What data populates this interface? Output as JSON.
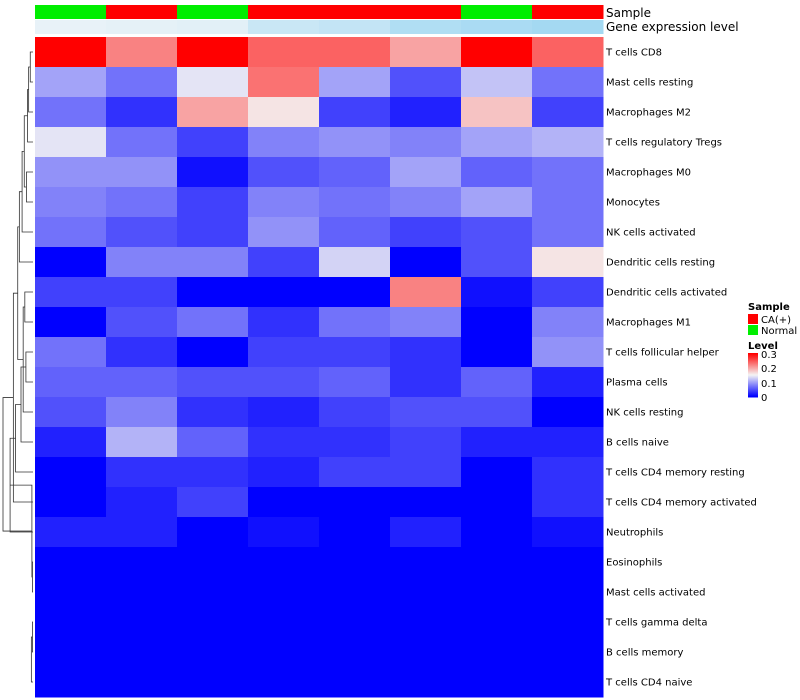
{
  "chart_data": {
    "type": "heatmap",
    "title": "",
    "column_count": 8,
    "annotations": [
      {
        "name": "Sample",
        "values": [
          "Normal",
          "CA(+)",
          "Normal",
          "CA(+)",
          "CA(+)",
          "CA(+)",
          "Normal",
          "CA(+)"
        ],
        "colors": {
          "CA(+)": "#ff0000",
          "Normal": "#00ee00"
        }
      },
      {
        "name": "Gene expression level",
        "values": [
          0.05,
          0.07,
          0.1,
          0.3,
          0.35,
          0.5,
          0.55,
          0.6
        ],
        "colors": {
          "low": "#eef4f8",
          "high": "#72c7ee"
        }
      }
    ],
    "rows": [
      "T cells CD8",
      "Mast cells resting",
      "Macrophages M2",
      "T cells regulatory  Tregs",
      "Macrophages M0",
      "Monocytes",
      "NK cells activated",
      "Dendritic cells resting",
      "Dendritic cells activated",
      "Macrophages M1",
      "T cells follicular helper",
      "Plasma cells",
      "NK cells resting",
      "B cells naive",
      "T cells CD4 memory resting",
      "T cells CD4 memory activated",
      "Neutrophils",
      "Eosinophils",
      "Mast cells activated",
      "T cells gamma delta",
      "B cells memory",
      "T cells CD4 naive"
    ],
    "values": [
      [
        0.3,
        0.22,
        0.3,
        0.24,
        0.24,
        0.2,
        0.3,
        0.24
      ],
      [
        0.1,
        0.07,
        0.14,
        0.23,
        0.1,
        0.05,
        0.12,
        0.07
      ],
      [
        0.07,
        0.03,
        0.2,
        0.16,
        0.04,
        0.02,
        0.18,
        0.04
      ],
      [
        0.14,
        0.07,
        0.04,
        0.08,
        0.09,
        0.08,
        0.1,
        0.11
      ],
      [
        0.09,
        0.09,
        0.01,
        0.05,
        0.06,
        0.1,
        0.06,
        0.07
      ],
      [
        0.08,
        0.07,
        0.04,
        0.08,
        0.07,
        0.08,
        0.1,
        0.07
      ],
      [
        0.07,
        0.05,
        0.04,
        0.09,
        0.06,
        0.04,
        0.05,
        0.07
      ],
      [
        0.0,
        0.08,
        0.08,
        0.04,
        0.13,
        0.0,
        0.05,
        0.16
      ],
      [
        0.04,
        0.04,
        0.0,
        0.0,
        0.0,
        0.22,
        0.01,
        0.04
      ],
      [
        0.0,
        0.05,
        0.07,
        0.03,
        0.07,
        0.08,
        0.0,
        0.08
      ],
      [
        0.07,
        0.03,
        0.0,
        0.04,
        0.04,
        0.03,
        0.0,
        0.09
      ],
      [
        0.06,
        0.06,
        0.05,
        0.05,
        0.06,
        0.03,
        0.06,
        0.02
      ],
      [
        0.05,
        0.08,
        0.03,
        0.02,
        0.04,
        0.05,
        0.05,
        0.0
      ],
      [
        0.02,
        0.11,
        0.06,
        0.03,
        0.03,
        0.04,
        0.02,
        0.02
      ],
      [
        0.0,
        0.03,
        0.03,
        0.02,
        0.04,
        0.04,
        0.0,
        0.03
      ],
      [
        0.0,
        0.02,
        0.04,
        0.0,
        0.0,
        0.0,
        0.0,
        0.03
      ],
      [
        0.02,
        0.02,
        0.0,
        0.01,
        0.0,
        0.02,
        0.0,
        0.01
      ],
      [
        0.0,
        0.0,
        0.0,
        0.0,
        0.0,
        0.0,
        0.0,
        0.0
      ],
      [
        0.0,
        0.0,
        0.0,
        0.0,
        0.0,
        0.0,
        0.0,
        0.0
      ],
      [
        0.0,
        0.0,
        0.0,
        0.0,
        0.0,
        0.0,
        0.0,
        0.0
      ],
      [
        0.0,
        0.0,
        0.0,
        0.0,
        0.0,
        0.0,
        0.0,
        0.0
      ],
      [
        0.0,
        0.0,
        0.0,
        0.0,
        0.0,
        0.0,
        0.0,
        0.0
      ]
    ],
    "color_scale": {
      "min": 0,
      "mid": 0.15,
      "max": 0.3,
      "low": "#0000ff",
      "mid_color": "#f4f4f4",
      "high": "#ff0000"
    },
    "dendrogram": {
      "side": "left",
      "merges": [
        [
          -1,
          -2
        ],
        [
          -3,
          1
        ],
        [
          -4,
          2
        ],
        [
          -5,
          -6
        ],
        [
          3,
          4
        ],
        [
          -7,
          5
        ],
        [
          -8,
          6
        ],
        [
          -9,
          -10
        ],
        [
          -11,
          -12
        ],
        [
          8,
          -13
        ],
        [
          9,
          -14
        ],
        [
          7,
          10
        ],
        [
          11,
          -15
        ],
        [
          12,
          -16
        ],
        [
          13,
          -17
        ],
        [
          -18,
          -19
        ],
        [
          -20,
          -21
        ],
        [
          15,
          16
        ],
        [
          17,
          -22
        ],
        [
          14,
          18
        ]
      ],
      "heights": [
        0.05,
        0.08,
        0.1,
        0.12,
        0.16,
        0.2,
        0.25,
        0.15,
        0.13,
        0.18,
        0.22,
        0.28,
        0.32,
        0.36,
        0.42,
        0.01,
        0.01,
        0.02,
        0.03,
        0.55
      ]
    },
    "legend": {
      "position": "right",
      "sample_title": "Sample",
      "sample_items": [
        {
          "label": "CA(+)",
          "color": "#ff0000"
        },
        {
          "label": "Normal",
          "color": "#00ee00"
        }
      ],
      "level_title": "Level",
      "level_ticks": [
        "0.3",
        "0.2",
        "0.1",
        "0"
      ]
    }
  }
}
